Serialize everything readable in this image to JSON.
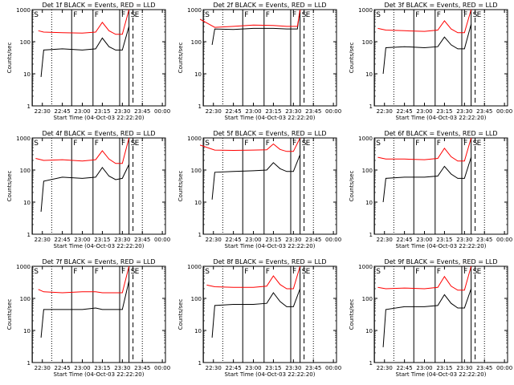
{
  "colors": {
    "events": "#000000",
    "lld": "#ff0000",
    "background": "#ffffff",
    "axis": "#000000"
  },
  "chart_data": [
    {
      "type": "line",
      "title": "Det 1f BLACK = Events, RED = LLD",
      "xlabel": "Start Time (04-Oct-03 22:22:20)",
      "ylabel": "Counts/sec",
      "x_ticks": [
        "22:30",
        "22:45",
        "23:00",
        "23:15",
        "23:30",
        "23:45",
        "00:00"
      ],
      "y_ticks": [
        "1",
        "10",
        "100",
        "1000"
      ],
      "yscale": "log",
      "ylim": [
        1,
        1000
      ],
      "markers": [
        "S",
        "F",
        "F",
        "F",
        "S",
        "E"
      ],
      "series": [
        {
          "name": "Events",
          "color": "#000000",
          "x": [
            "22:29",
            "22:31",
            "22:45",
            "23:00",
            "23:10",
            "23:15",
            "23:20",
            "23:25",
            "23:30",
            "23:35"
          ],
          "values": [
            8,
            55,
            60,
            55,
            60,
            130,
            70,
            55,
            55,
            300
          ]
        },
        {
          "name": "LLD",
          "color": "#ff0000",
          "x": [
            "22:27",
            "22:31",
            "22:45",
            "23:00",
            "23:10",
            "23:15",
            "23:20",
            "23:25",
            "23:30",
            "23:35"
          ],
          "values": [
            220,
            200,
            190,
            185,
            200,
            400,
            220,
            170,
            170,
            1000
          ]
        }
      ]
    },
    {
      "type": "line",
      "title": "Det 2f BLACK = Events, RED = LLD",
      "xlabel": "Start Time (04-Oct-03 22:22:20)",
      "ylabel": "Counts/sec",
      "x_ticks": [
        "22:30",
        "22:45",
        "23:00",
        "23:15",
        "23:30",
        "23:45",
        "00:00"
      ],
      "y_ticks": [
        "1",
        "10",
        "100",
        "1000"
      ],
      "yscale": "log",
      "ylim": [
        1,
        1000
      ],
      "markers": [
        "S",
        "F",
        "F",
        "F",
        "S",
        "E"
      ],
      "series": [
        {
          "name": "Events",
          "color": "#000000",
          "x": [
            "22:29",
            "22:31",
            "22:45",
            "23:00",
            "23:15",
            "23:25",
            "23:33",
            "23:35"
          ],
          "values": [
            80,
            250,
            240,
            260,
            260,
            250,
            250,
            1000
          ]
        },
        {
          "name": "LLD",
          "color": "#ff0000",
          "x": [
            "22:20",
            "22:31",
            "22:45",
            "23:00",
            "23:15",
            "23:25",
            "23:33",
            "23:35"
          ],
          "values": [
            500,
            280,
            300,
            330,
            320,
            300,
            300,
            1000
          ]
        }
      ]
    },
    {
      "type": "line",
      "title": "Det 3f BLACK = Events, RED = LLD",
      "xlabel": "Start Time (04-Oct-03 22:22:20)",
      "ylabel": "Counts/sec",
      "x_ticks": [
        "22:30",
        "22:45",
        "23:00",
        "23:15",
        "23:30",
        "23:45",
        "00:00"
      ],
      "y_ticks": [
        "1",
        "10",
        "100",
        "1000"
      ],
      "yscale": "log",
      "ylim": [
        1,
        1000
      ],
      "markers": [
        "S",
        "F",
        "F",
        "F",
        "S",
        "E"
      ],
      "series": [
        {
          "name": "Events",
          "color": "#000000",
          "x": [
            "22:29",
            "22:31",
            "22:45",
            "23:00",
            "23:10",
            "23:15",
            "23:20",
            "23:25",
            "23:30",
            "23:35"
          ],
          "values": [
            10,
            65,
            70,
            65,
            70,
            140,
            80,
            60,
            60,
            350
          ]
        },
        {
          "name": "LLD",
          "color": "#ff0000",
          "x": [
            "22:25",
            "22:31",
            "22:45",
            "23:00",
            "23:10",
            "23:15",
            "23:20",
            "23:25",
            "23:30",
            "23:35"
          ],
          "values": [
            260,
            230,
            220,
            210,
            230,
            450,
            250,
            190,
            190,
            1000
          ]
        }
      ]
    },
    {
      "type": "line",
      "title": "Det 4f BLACK = Events, RED = LLD",
      "xlabel": "Start Time (04-Oct-03 22:22:20)",
      "ylabel": "Counts/sec",
      "x_ticks": [
        "22:30",
        "22:45",
        "23:00",
        "23:15",
        "23:30",
        "23:45",
        "00:00"
      ],
      "y_ticks": [
        "1",
        "10",
        "100",
        "1000"
      ],
      "yscale": "log",
      "ylim": [
        1,
        1000
      ],
      "markers": [
        "S",
        "F",
        "F",
        "F",
        "S",
        "E"
      ],
      "series": [
        {
          "name": "Events",
          "color": "#000000",
          "x": [
            "22:29",
            "22:31",
            "22:45",
            "23:00",
            "23:10",
            "23:15",
            "23:20",
            "23:25",
            "23:30",
            "23:35"
          ],
          "values": [
            5,
            45,
            60,
            55,
            60,
            120,
            65,
            50,
            55,
            150
          ]
        },
        {
          "name": "LLD",
          "color": "#ff0000",
          "x": [
            "22:25",
            "22:31",
            "22:45",
            "23:00",
            "23:10",
            "23:15",
            "23:20",
            "23:25",
            "23:30",
            "23:35"
          ],
          "values": [
            230,
            200,
            210,
            190,
            210,
            400,
            220,
            160,
            160,
            1000
          ]
        }
      ]
    },
    {
      "type": "line",
      "title": "Det 5f BLACK = Events, RED = LLD",
      "xlabel": "Start Time (04-Oct-03 22:22:20)",
      "ylabel": "Counts/sec",
      "x_ticks": [
        "22:30",
        "22:45",
        "23:00",
        "23:15",
        "23:30",
        "23:45",
        "00:00"
      ],
      "y_ticks": [
        "1",
        "10",
        "100",
        "1000"
      ],
      "yscale": "log",
      "ylim": [
        1,
        1000
      ],
      "markers": [
        "S",
        "F",
        "F",
        "F",
        "S",
        "E"
      ],
      "series": [
        {
          "name": "Events",
          "color": "#000000",
          "x": [
            "22:29",
            "22:31",
            "22:45",
            "23:00",
            "23:10",
            "23:15",
            "23:20",
            "23:25",
            "23:30",
            "23:35"
          ],
          "values": [
            12,
            85,
            90,
            95,
            100,
            170,
            110,
            90,
            90,
            300
          ]
        },
        {
          "name": "LLD",
          "color": "#ff0000",
          "x": [
            "22:20",
            "22:31",
            "22:45",
            "23:00",
            "23:10",
            "23:15",
            "23:20",
            "23:25",
            "23:30",
            "23:35"
          ],
          "values": [
            600,
            420,
            410,
            420,
            430,
            650,
            440,
            380,
            380,
            1000
          ]
        }
      ]
    },
    {
      "type": "line",
      "title": "Det 6f BLACK = Events, RED = LLD",
      "xlabel": "Start Time (04-Oct-03 22:22:20)",
      "ylabel": "Counts/sec",
      "x_ticks": [
        "22:30",
        "22:45",
        "23:00",
        "23:15",
        "23:30",
        "23:45",
        "00:00"
      ],
      "y_ticks": [
        "1",
        "10",
        "100",
        "1000"
      ],
      "yscale": "log",
      "ylim": [
        1,
        1000
      ],
      "markers": [
        "S",
        "F",
        "F",
        "F",
        "S",
        "E"
      ],
      "series": [
        {
          "name": "Events",
          "color": "#000000",
          "x": [
            "22:29",
            "22:31",
            "22:45",
            "23:00",
            "23:10",
            "23:15",
            "23:20",
            "23:25",
            "23:30",
            "23:35"
          ],
          "values": [
            10,
            55,
            60,
            60,
            65,
            130,
            75,
            55,
            55,
            250
          ]
        },
        {
          "name": "LLD",
          "color": "#ff0000",
          "x": [
            "22:25",
            "22:31",
            "22:45",
            "23:00",
            "23:10",
            "23:15",
            "23:20",
            "23:25",
            "23:30",
            "23:35"
          ],
          "values": [
            250,
            220,
            220,
            210,
            230,
            480,
            260,
            190,
            190,
            1000
          ]
        }
      ]
    },
    {
      "type": "line",
      "title": "Det 7f BLACK = Events, RED = LLD",
      "xlabel": "Start Time (04-Oct-03 22:22:20)",
      "ylabel": "Counts/sec",
      "x_ticks": [
        "22:30",
        "22:45",
        "23:00",
        "23:15",
        "23:30",
        "23:45",
        "00:00"
      ],
      "y_ticks": [
        "1",
        "10",
        "100",
        "1000"
      ],
      "yscale": "log",
      "ylim": [
        1,
        1000
      ],
      "markers": [
        "S",
        "F",
        "F",
        "F",
        "S",
        "E"
      ],
      "series": [
        {
          "name": "Events",
          "color": "#000000",
          "x": [
            "22:29",
            "22:31",
            "22:45",
            "23:00",
            "23:10",
            "23:15",
            "23:20",
            "23:25",
            "23:30",
            "23:35"
          ],
          "values": [
            6,
            45,
            45,
            45,
            50,
            45,
            45,
            45,
            45,
            350
          ]
        },
        {
          "name": "LLD",
          "color": "#ff0000",
          "x": [
            "22:27",
            "22:31",
            "22:45",
            "23:00",
            "23:10",
            "23:15",
            "23:20",
            "23:25",
            "23:30",
            "23:35"
          ],
          "values": [
            190,
            160,
            150,
            160,
            160,
            150,
            150,
            150,
            150,
            1000
          ]
        }
      ]
    },
    {
      "type": "line",
      "title": "Det 8f BLACK = Events, RED = LLD",
      "xlabel": "Start Time (04-Oct-03 22:22:20)",
      "ylabel": "Counts/sec",
      "x_ticks": [
        "22:30",
        "22:45",
        "23:00",
        "23:15",
        "23:30",
        "23:45",
        "00:00"
      ],
      "y_ticks": [
        "1",
        "10",
        "100",
        "1000"
      ],
      "yscale": "log",
      "ylim": [
        1,
        1000
      ],
      "markers": [
        "S",
        "F",
        "F",
        "F",
        "S",
        "E"
      ],
      "series": [
        {
          "name": "Events",
          "color": "#000000",
          "x": [
            "22:29",
            "22:31",
            "22:45",
            "23:00",
            "23:10",
            "23:15",
            "23:20",
            "23:25",
            "23:30",
            "23:35"
          ],
          "values": [
            6,
            60,
            65,
            65,
            70,
            150,
            80,
            55,
            55,
            200
          ]
        },
        {
          "name": "LLD",
          "color": "#ff0000",
          "x": [
            "22:25",
            "22:31",
            "22:45",
            "23:00",
            "23:10",
            "23:15",
            "23:20",
            "23:25",
            "23:30",
            "23:35"
          ],
          "values": [
            260,
            230,
            220,
            220,
            240,
            500,
            270,
            200,
            200,
            1000
          ]
        }
      ]
    },
    {
      "type": "line",
      "title": "Det 9f BLACK = Events, RED = LLD",
      "xlabel": "Start Time (04-Oct-03 22:22:20)",
      "ylabel": "Counts/sec",
      "x_ticks": [
        "22:30",
        "22:45",
        "23:00",
        "23:15",
        "23:30",
        "23:45",
        "00:00"
      ],
      "y_ticks": [
        "1",
        "10",
        "100",
        "1000"
      ],
      "yscale": "log",
      "ylim": [
        1,
        1000
      ],
      "markers": [
        "S",
        "F",
        "F",
        "F",
        "S",
        "E"
      ],
      "series": [
        {
          "name": "Events",
          "color": "#000000",
          "x": [
            "22:29",
            "22:31",
            "22:45",
            "23:00",
            "23:10",
            "23:15",
            "23:20",
            "23:25",
            "23:30",
            "23:35"
          ],
          "values": [
            3,
            45,
            55,
            55,
            60,
            130,
            70,
            50,
            50,
            200
          ]
        },
        {
          "name": "LLD",
          "color": "#ff0000",
          "x": [
            "22:25",
            "22:31",
            "22:45",
            "23:00",
            "23:10",
            "23:15",
            "23:20",
            "23:25",
            "23:30",
            "23:35"
          ],
          "values": [
            220,
            200,
            210,
            200,
            220,
            480,
            240,
            180,
            180,
            1000
          ]
        }
      ]
    }
  ]
}
